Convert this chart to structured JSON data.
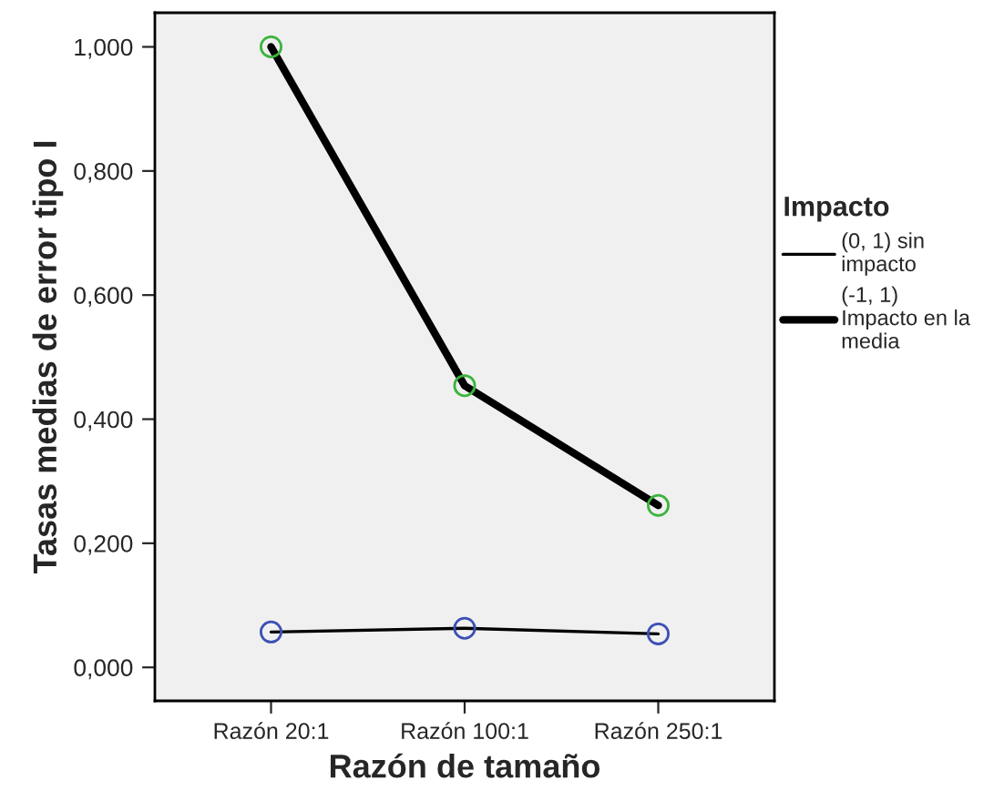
{
  "chart_data": {
    "type": "line",
    "xlabel": "Razón de tamaño",
    "ylabel": "Tasas medias de error tipo I",
    "legend_title": "Impacto",
    "legend": "right",
    "marker": "circle",
    "line_style": "solid",
    "grid": false,
    "categories": [
      "Razón 20:1",
      "Razón 100:1",
      "Razón 250:1"
    ],
    "ylim": [
      -0.054,
      1.055
    ],
    "yticks": [
      {
        "value": 0,
        "label": "0,000"
      },
      {
        "value": 0.2,
        "label": "0,200"
      },
      {
        "value": 0.4,
        "label": "0,400"
      },
      {
        "value": 0.6,
        "label": "0,600"
      },
      {
        "value": 0.8,
        "label": "0,800"
      },
      {
        "value": 1.0,
        "label": "1,000"
      }
    ],
    "series": [
      {
        "name": "(0, 1) sin\nimpacto",
        "color": "#000000",
        "colors": [
          "#3c50b4",
          "#3c50b4",
          "#3c50b4"
        ],
        "values": [
          0.057,
          0.063,
          0.054
        ]
      },
      {
        "name": "(-1, 1)\nImpacto en la\nmedia",
        "color": "#000000",
        "colors": [
          "#3cb43c",
          "#3cb43c",
          "#3cb43c"
        ],
        "values": [
          1.0,
          0.454,
          0.261
        ]
      }
    ]
  }
}
